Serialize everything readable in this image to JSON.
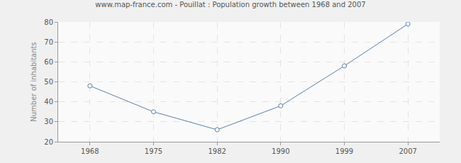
{
  "chart_data": {
    "type": "line",
    "title": "www.map-france.com - Pouillat : Population growth between 1968 and 2007",
    "y_label": "Number of inhabitants",
    "categories": [
      "1968",
      "1975",
      "1982",
      "1990",
      "1999",
      "2007"
    ],
    "values": [
      48,
      35,
      26,
      38,
      58,
      79
    ],
    "color": "#5b80a8",
    "marker": "circle",
    "ylim": [
      20,
      80
    ],
    "yticks": [
      20,
      30,
      40,
      50,
      60,
      70,
      80
    ],
    "grid": true
  }
}
